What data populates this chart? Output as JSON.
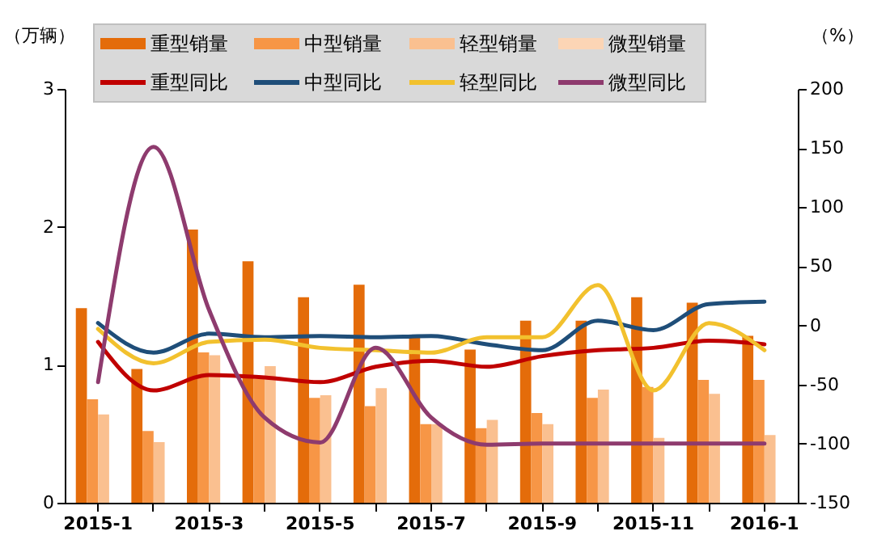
{
  "chart_data": {
    "type": "bar",
    "ylabel": "（万辆）",
    "y2label": "（%）",
    "categories": [
      "2015-1",
      null,
      "2015-3",
      null,
      "2015-5",
      null,
      "2015-7",
      null,
      "2015-9",
      null,
      "2015-11",
      null,
      "2016-1"
    ],
    "series": [
      {
        "name": "重型销量",
        "color": "#e46c0a",
        "values": [
          1.41,
          0.97,
          1.98,
          1.75,
          1.49,
          1.58,
          1.2,
          1.11,
          1.32,
          1.32,
          1.49,
          1.45,
          1.21
        ]
      },
      {
        "name": "中型销量",
        "color": "#f79646",
        "values": [
          0.75,
          0.52,
          1.09,
          0.9,
          0.76,
          0.7,
          0.57,
          0.54,
          0.65,
          0.76,
          0.84,
          0.89,
          0.89
        ]
      },
      {
        "name": "轻型销量",
        "color": "#fac090",
        "values": [
          0.64,
          0.44,
          1.07,
          0.99,
          0.78,
          0.83,
          0.57,
          0.6,
          0.57,
          0.82,
          0.47,
          0.79,
          0.49
        ]
      },
      {
        "name": "微型销量",
        "color": "#fcd5b5",
        "values": [
          0,
          0,
          0,
          0,
          0,
          0,
          0,
          0,
          0,
          0,
          0,
          0,
          0
        ]
      },
      {
        "name": "重型同比",
        "type": "line",
        "axis": "y2",
        "color": "#c00000",
        "values": [
          -14,
          -55,
          -42,
          -44,
          -48,
          -35,
          -30,
          -35,
          -26,
          -21,
          -19,
          -13,
          -16
        ]
      },
      {
        "name": "中型同比",
        "type": "line",
        "axis": "y2",
        "color": "#1f4e79",
        "values": [
          2,
          -23,
          -7,
          -10,
          -9,
          -10,
          -9,
          -16,
          -21,
          4,
          -4,
          18,
          20
        ]
      },
      {
        "name": "轻型同比",
        "type": "line",
        "axis": "y2",
        "color": "#f2c12e",
        "values": [
          -3,
          -32,
          -14,
          -12,
          -19,
          -21,
          -23,
          -10,
          -10,
          34,
          -55,
          2,
          -21
        ]
      },
      {
        "name": "微型同比",
        "type": "line",
        "axis": "y2",
        "color": "#8e3b6e",
        "values": [
          -48,
          151,
          13,
          -78,
          -99,
          -19,
          -78,
          -101,
          -100,
          -100,
          -100,
          -100,
          -100
        ]
      }
    ],
    "ylim": [
      0,
      3
    ],
    "yticks": [
      0,
      1,
      2,
      3
    ],
    "y2lim": [
      -150,
      200
    ],
    "y2ticks": [
      -150,
      -100,
      -50,
      0,
      50,
      100,
      150,
      200
    ],
    "legend": "top",
    "marker": "none",
    "line_style": "solid"
  }
}
